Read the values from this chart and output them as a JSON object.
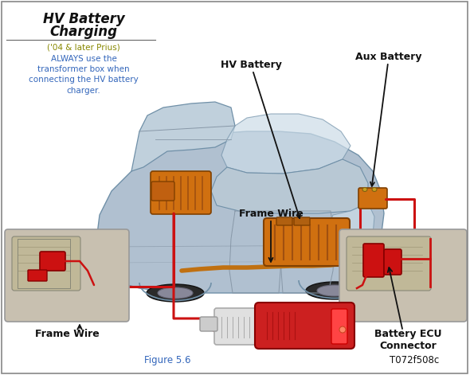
{
  "title_line1": "HV Battery",
  "title_line2": "Charging",
  "subtitle": "('04 & later Prius)",
  "warning_text": "ALWAYS use the\ntransformer box when\nconnecting the HV battery\ncharger.",
  "label_hv_battery": "HV Battery",
  "label_aux_battery": "Aux Battery",
  "label_frame_wire_center": "Frame Wire",
  "label_frame_wire_bottom": "Frame Wire",
  "label_battery_ecu": "Battery ECU\nConnector",
  "figure_label": "Figure 5.6",
  "part_number": "T072f508c",
  "bg_color": "#ffffff",
  "border_color": "#888888",
  "title_color": "#111111",
  "subtitle_color": "#888800",
  "warning_color": "#3366bb",
  "label_color": "#111111",
  "figure_label_color": "#3366bb",
  "part_number_color": "#111111",
  "car_color": "#b0c0d0",
  "car_edge": "#7090a8",
  "car_line": "#8898a8",
  "battery_orange": "#d07800",
  "wire_red": "#cc1111",
  "inset_bg": "#c8c0b0",
  "inset_border": "#999999",
  "charger_red": "#cc2020",
  "charger_white": "#e0e0e0",
  "arrow_color": "#111111"
}
